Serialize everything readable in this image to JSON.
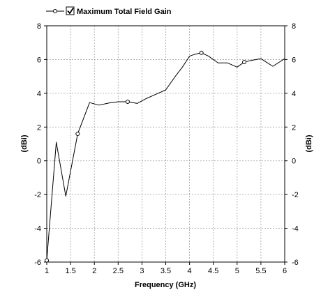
{
  "chart_data": {
    "type": "line",
    "title": "",
    "xlabel": "Frequency (GHz)",
    "ylabel_left": "(dBi)",
    "ylabel_right": "(dBi)",
    "xlim": [
      1,
      6
    ],
    "ylim": [
      -6,
      8
    ],
    "xticks": [
      1,
      1.5,
      2,
      2.5,
      3,
      3.5,
      4,
      4.5,
      5,
      5.5,
      6
    ],
    "xtick_labels": [
      "1",
      "1.5",
      "2",
      "2.5",
      "3",
      "3.5",
      "4",
      "4.5",
      "5",
      "5.5",
      "6"
    ],
    "yticks": [
      -6,
      -4,
      -2,
      0,
      2,
      4,
      6,
      8
    ],
    "ytick_labels": [
      "-6",
      "-4",
      "-2",
      "0",
      "2",
      "4",
      "6",
      "8"
    ],
    "grid": true,
    "legend_position": "top-left",
    "series": [
      {
        "name": "Maximum Total Field Gain",
        "legend_checked": true,
        "color": "#000000",
        "x": [
          1.0,
          1.2,
          1.4,
          1.65,
          1.9,
          2.1,
          2.3,
          2.5,
          2.7,
          2.9,
          3.1,
          3.3,
          3.5,
          3.7,
          3.85,
          4.0,
          4.1,
          4.25,
          4.4,
          4.6,
          4.8,
          5.0,
          5.15,
          5.3,
          5.5,
          5.75,
          6.0
        ],
        "y": [
          -5.9,
          1.1,
          -2.1,
          1.6,
          3.45,
          3.3,
          3.42,
          3.5,
          3.5,
          3.4,
          3.7,
          3.95,
          4.2,
          5.0,
          5.55,
          6.2,
          6.3,
          6.4,
          6.2,
          5.8,
          5.8,
          5.55,
          5.85,
          5.95,
          6.05,
          5.6,
          6.05
        ],
        "marker_indices": [
          0,
          3,
          8,
          17,
          22
        ]
      }
    ]
  }
}
